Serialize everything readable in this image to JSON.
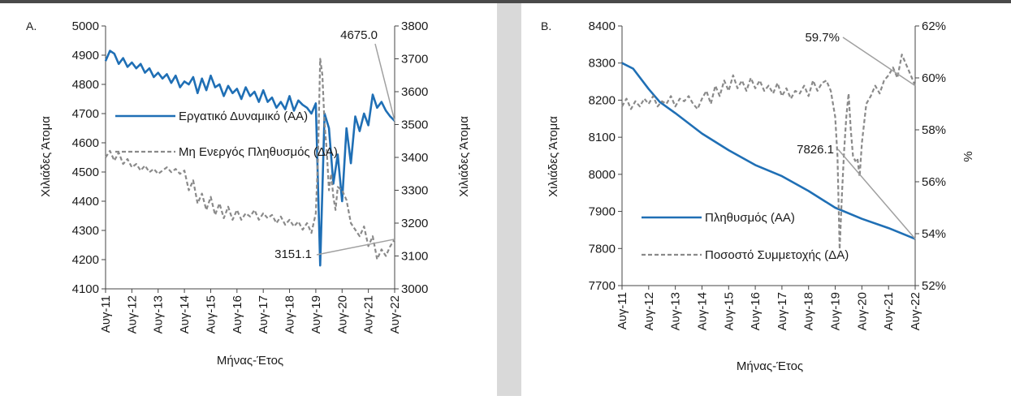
{
  "chart_data": [
    {
      "type": "line",
      "panel_label": "A.",
      "xlabel": "Μήνας-Έτος",
      "ylabel_left": "Χιλιάδες Άτομα",
      "ylabel_right": "Χιλιάδες Άτομα",
      "x_ticks": [
        "Αυγ-11",
        "Αυγ-12",
        "Αυγ-13",
        "Αυγ-14",
        "Αυγ-15",
        "Αυγ-16",
        "Αυγ-17",
        "Αυγ-18",
        "Αυγ-19",
        "Αυγ-20",
        "Αυγ-21",
        "Αυγ-22"
      ],
      "x_range": [
        2011.583,
        2022.583
      ],
      "ylim_left": [
        4100,
        5000
      ],
      "yticks_left": [
        4100,
        4200,
        4300,
        4400,
        4500,
        4600,
        4700,
        4800,
        4900,
        5000
      ],
      "ylim_right": [
        3000,
        3800
      ],
      "yticks_right": [
        3000,
        3100,
        3200,
        3300,
        3400,
        3500,
        3600,
        3700,
        3800
      ],
      "grid": false,
      "legend_placement": "left-center",
      "series": [
        {
          "name": "Εργατικό Δυναμικό (ΑΑ)",
          "axis": "left",
          "color": "#1f6fb5",
          "style": "solid",
          "x": [
            2011.583,
            2011.75,
            2011.917,
            2012.083,
            2012.25,
            2012.417,
            2012.583,
            2012.75,
            2012.917,
            2013.083,
            2013.25,
            2013.417,
            2013.583,
            2013.75,
            2013.917,
            2014.083,
            2014.25,
            2014.417,
            2014.583,
            2014.75,
            2014.917,
            2015.083,
            2015.25,
            2015.417,
            2015.583,
            2015.75,
            2015.917,
            2016.083,
            2016.25,
            2016.417,
            2016.583,
            2016.75,
            2016.917,
            2017.083,
            2017.25,
            2017.417,
            2017.583,
            2017.75,
            2017.917,
            2018.083,
            2018.25,
            2018.417,
            2018.583,
            2018.75,
            2018.917,
            2019.083,
            2019.25,
            2019.417,
            2019.583,
            2019.75,
            2019.917,
            2020.083,
            2020.25,
            2020.417,
            2020.583,
            2020.75,
            2020.917,
            2021.083,
            2021.25,
            2021.417,
            2021.583,
            2021.75,
            2021.917,
            2022.083,
            2022.25,
            2022.417,
            2022.583
          ],
          "values": [
            4880,
            4915,
            4905,
            4870,
            4890,
            4860,
            4875,
            4855,
            4870,
            4840,
            4855,
            4825,
            4840,
            4820,
            4835,
            4805,
            4830,
            4790,
            4810,
            4800,
            4825,
            4770,
            4820,
            4780,
            4830,
            4790,
            4800,
            4760,
            4795,
            4770,
            4785,
            4750,
            4790,
            4760,
            4775,
            4740,
            4780,
            4740,
            4755,
            4720,
            4740,
            4715,
            4760,
            4710,
            4745,
            4730,
            4720,
            4700,
            4735,
            4180,
            4700,
            4650,
            4460,
            4560,
            4400,
            4650,
            4530,
            4690,
            4640,
            4700,
            4660,
            4765,
            4720,
            4740,
            4710,
            4690,
            4675.0
          ]
        },
        {
          "name": "Μη Ενεργός Πληθυσμός (ΔΑ)",
          "axis": "right",
          "color": "#8a8a8a",
          "style": "dashed",
          "x": [
            2011.583,
            2011.75,
            2011.917,
            2012.083,
            2012.25,
            2012.417,
            2012.583,
            2012.75,
            2012.917,
            2013.083,
            2013.25,
            2013.417,
            2013.583,
            2013.75,
            2013.917,
            2014.083,
            2014.25,
            2014.417,
            2014.583,
            2014.75,
            2014.917,
            2015.083,
            2015.25,
            2015.417,
            2015.583,
            2015.75,
            2015.917,
            2016.083,
            2016.25,
            2016.417,
            2016.583,
            2016.75,
            2016.917,
            2017.083,
            2017.25,
            2017.417,
            2017.583,
            2017.75,
            2017.917,
            2018.083,
            2018.25,
            2018.417,
            2018.583,
            2018.75,
            2018.917,
            2019.083,
            2019.25,
            2019.417,
            2019.583,
            2019.667,
            2019.75,
            2019.833,
            2019.917,
            2020.0,
            2020.083,
            2020.167,
            2020.25,
            2020.333,
            2020.417,
            2020.583,
            2020.75,
            2020.917,
            2021.083,
            2021.25,
            2021.417,
            2021.583,
            2021.75,
            2021.917,
            2022.083,
            2022.25,
            2022.417,
            2022.583
          ],
          "values": [
            3400,
            3420,
            3390,
            3415,
            3380,
            3395,
            3370,
            3380,
            3360,
            3375,
            3355,
            3365,
            3350,
            3360,
            3370,
            3355,
            3365,
            3350,
            3360,
            3300,
            3330,
            3260,
            3290,
            3240,
            3280,
            3225,
            3260,
            3215,
            3250,
            3210,
            3240,
            3210,
            3230,
            3220,
            3240,
            3210,
            3230,
            3215,
            3225,
            3200,
            3220,
            3195,
            3210,
            3190,
            3205,
            3180,
            3200,
            3170,
            3230,
            3400,
            3700,
            3650,
            3500,
            3420,
            3300,
            3350,
            3280,
            3240,
            3310,
            3300,
            3270,
            3200,
            3180,
            3160,
            3190,
            3130,
            3160,
            3090,
            3120,
            3100,
            3130,
            3151.1
          ]
        }
      ],
      "annotations": [
        {
          "text": "4675.0",
          "series": "Εργατικό Δυναμικό (ΑΑ)"
        },
        {
          "text": "3151.1",
          "series": "Μη Ενεργός Πληθυσμός (ΔΑ)"
        }
      ]
    },
    {
      "type": "line",
      "panel_label": "B.",
      "xlabel": "Μήνας-Έτος",
      "ylabel_left": "Χιλιάδες Άτομα",
      "ylabel_right": "%",
      "x_ticks": [
        "Αυγ-11",
        "Αυγ-12",
        "Αυγ-13",
        "Αυγ-14",
        "Αυγ-15",
        "Αυγ-16",
        "Αυγ-17",
        "Αυγ-18",
        "Αυγ-19",
        "Αυγ-20",
        "Αυγ-21",
        "Αυγ-22"
      ],
      "x_range": [
        2011.583,
        2022.583
      ],
      "ylim_left": [
        7700,
        8400
      ],
      "yticks_left": [
        7700,
        7800,
        7900,
        8000,
        8100,
        8200,
        8300,
        8400
      ],
      "ylim_right": [
        52,
        62
      ],
      "yticks_right": [
        "52%",
        "54%",
        "56%",
        "58%",
        "60%",
        "62%"
      ],
      "grid": false,
      "legend_placement": "bottom-center",
      "series": [
        {
          "name": "Πληθυσμός (ΑΑ)",
          "axis": "left",
          "color": "#1f6fb5",
          "style": "solid",
          "x": [
            2011.583,
            2012.0,
            2012.583,
            2013.0,
            2013.583,
            2014.583,
            2015.583,
            2016.583,
            2017.583,
            2018.583,
            2019.583,
            2020.583,
            2021.583,
            2022.583
          ],
          "values": [
            8300,
            8285,
            8230,
            8195,
            8165,
            8110,
            8065,
            8025,
            7995,
            7955,
            7910,
            7880,
            7855,
            7826.1
          ]
        },
        {
          "name": "Ποσοστό Συμμετοχής (ΔΑ)",
          "axis": "right",
          "color": "#8a8a8a",
          "style": "dashed",
          "x": [
            2011.583,
            2011.75,
            2011.917,
            2012.083,
            2012.25,
            2012.417,
            2012.583,
            2012.75,
            2012.917,
            2013.083,
            2013.25,
            2013.417,
            2013.583,
            2013.75,
            2013.917,
            2014.083,
            2014.25,
            2014.417,
            2014.583,
            2014.75,
            2014.917,
            2015.083,
            2015.25,
            2015.417,
            2015.583,
            2015.75,
            2015.917,
            2016.083,
            2016.25,
            2016.417,
            2016.583,
            2016.75,
            2016.917,
            2017.083,
            2017.25,
            2017.417,
            2017.583,
            2017.75,
            2017.917,
            2018.083,
            2018.25,
            2018.417,
            2018.583,
            2018.75,
            2018.917,
            2019.083,
            2019.25,
            2019.417,
            2019.583,
            2019.667,
            2019.75,
            2019.833,
            2019.917,
            2020.0,
            2020.083,
            2020.167,
            2020.25,
            2020.333,
            2020.417,
            2020.5,
            2020.583,
            2020.75,
            2020.917,
            2021.083,
            2021.25,
            2021.417,
            2021.583,
            2021.75,
            2021.917,
            2022.083,
            2022.25,
            2022.417,
            2022.583
          ],
          "values": [
            58.9,
            59.2,
            58.8,
            59.1,
            58.9,
            59.2,
            59.0,
            59.3,
            58.9,
            59.1,
            59.0,
            59.3,
            58.9,
            59.2,
            59.1,
            59.3,
            59.0,
            58.8,
            59.2,
            59.5,
            59.0,
            59.7,
            59.3,
            59.9,
            59.5,
            60.1,
            59.6,
            59.9,
            59.5,
            60.0,
            59.6,
            59.9,
            59.5,
            59.7,
            59.4,
            59.8,
            59.3,
            59.6,
            59.2,
            59.5,
            59.4,
            59.7,
            59.3,
            59.9,
            59.5,
            59.8,
            59.9,
            59.5,
            58.5,
            57.0,
            53.4,
            55.5,
            57.2,
            58.5,
            59.4,
            58.0,
            57.0,
            56.8,
            56.9,
            56.2,
            57.5,
            59.0,
            59.3,
            59.7,
            59.4,
            59.9,
            60.1,
            60.4,
            60.0,
            60.9,
            60.5,
            60.1,
            59.7
          ]
        }
      ],
      "annotations": [
        {
          "text": "59.7%",
          "series": "Ποσοστό Συμμετοχής (ΔΑ)"
        },
        {
          "text": "7826.1",
          "series": "Πληθυσμός (ΑΑ)"
        }
      ]
    }
  ]
}
